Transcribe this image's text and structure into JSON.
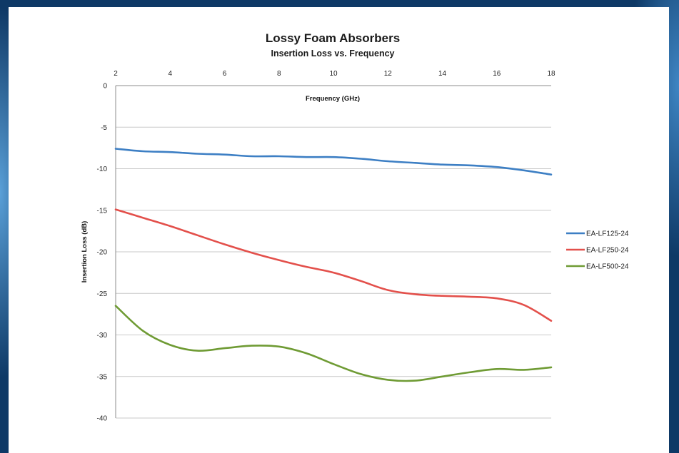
{
  "chart_data": {
    "type": "line",
    "title": "Lossy Foam Absorbers",
    "subtitle": "Insertion Loss vs. Frequency",
    "xlabel": "Frequency (GHz)",
    "ylabel": "Insertion Loss (dB)",
    "xlim": [
      2,
      18
    ],
    "ylim": [
      -40,
      0
    ],
    "xticks": [
      2,
      4,
      6,
      8,
      10,
      12,
      14,
      16,
      18
    ],
    "yticks": [
      0,
      -5,
      -10,
      -15,
      -20,
      -25,
      -30,
      -35,
      -40
    ],
    "x_axis_position": "top",
    "grid": "horizontal",
    "legend_position": "right",
    "x": [
      2,
      3,
      4,
      5,
      6,
      7,
      8,
      9,
      10,
      11,
      12,
      13,
      14,
      15,
      16,
      17,
      18
    ],
    "series": [
      {
        "name": "EA-LF125-24",
        "color": "#3d7fc4",
        "values": [
          -7.6,
          -7.9,
          -8.0,
          -8.2,
          -8.3,
          -8.5,
          -8.5,
          -8.6,
          -8.6,
          -8.8,
          -9.1,
          -9.3,
          -9.5,
          -9.6,
          -9.8,
          -10.2,
          -10.7
        ]
      },
      {
        "name": "EA-LF250-24",
        "color": "#e3504b",
        "values": [
          -14.9,
          -15.9,
          -16.9,
          -18.0,
          -19.1,
          -20.1,
          -21.0,
          -21.8,
          -22.5,
          -23.5,
          -24.6,
          -25.1,
          -25.3,
          -25.4,
          -25.6,
          -26.4,
          -28.3
        ]
      },
      {
        "name": "EA-LF500-24",
        "color": "#6f9b34",
        "values": [
          -26.5,
          -29.5,
          -31.2,
          -31.9,
          -31.6,
          -31.3,
          -31.4,
          -32.2,
          -33.5,
          -34.7,
          -35.4,
          -35.5,
          -35.0,
          -34.5,
          -34.1,
          -34.2,
          -33.9
        ]
      }
    ]
  }
}
